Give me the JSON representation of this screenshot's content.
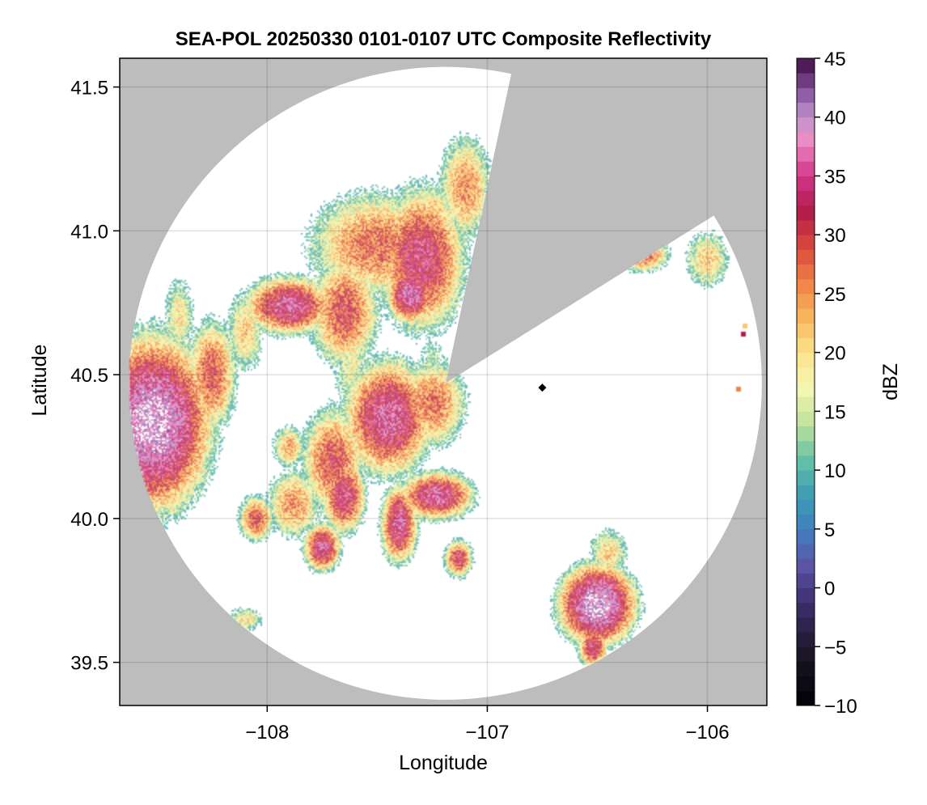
{
  "chart_data": {
    "type": "heatmap",
    "title": "SEA-POL 20250330 0101-0107 UTC Composite Reflectivity",
    "xlabel": "Longitude",
    "ylabel": "Latitude",
    "xlim": [
      -108.67,
      -105.73
    ],
    "ylim": [
      39.35,
      41.6
    ],
    "xticks": [
      -108,
      -107,
      -106
    ],
    "xtick_labels": [
      "−108",
      "−107",
      "−106"
    ],
    "yticks": [
      39.5,
      40.0,
      40.5,
      41.0,
      41.5
    ],
    "ytick_labels": [
      "39.5",
      "40.0",
      "40.5",
      "41.0",
      "41.5"
    ],
    "grid": true,
    "background_color": "#bdbdbd",
    "radar": {
      "center_lon": -107.19,
      "center_lat": 40.47,
      "range_lat_deg": 1.1,
      "blocked_sector_azimuth_deg": [
        12,
        58
      ]
    },
    "radar_marker": {
      "lon": -106.75,
      "lat": 40.455,
      "symbol": "diamond"
    },
    "colorbar": {
      "label": "dBZ",
      "min": -10,
      "max": 45,
      "ticks": [
        -10,
        -5,
        0,
        5,
        10,
        15,
        20,
        25,
        30,
        35,
        40,
        45
      ],
      "tick_labels": [
        "−10",
        "−5",
        "0",
        "5",
        "10",
        "15",
        "20",
        "25",
        "30",
        "35",
        "40",
        "45"
      ],
      "colormap_stops": [
        {
          "v": -10,
          "c": "#000004"
        },
        {
          "v": -5,
          "c": "#1f1a2e"
        },
        {
          "v": -1,
          "c": "#3f3072"
        },
        {
          "v": 2,
          "c": "#5b56a6"
        },
        {
          "v": 5,
          "c": "#3f7fbf"
        },
        {
          "v": 8,
          "c": "#3e9fb3"
        },
        {
          "v": 11,
          "c": "#66c2a5"
        },
        {
          "v": 14,
          "c": "#c1e29b"
        },
        {
          "v": 17,
          "c": "#f4f7b3"
        },
        {
          "v": 20,
          "c": "#fce38a"
        },
        {
          "v": 23,
          "c": "#f8b65e"
        },
        {
          "v": 26,
          "c": "#f08146"
        },
        {
          "v": 29,
          "c": "#d9483b"
        },
        {
          "v": 32,
          "c": "#b01c4a"
        },
        {
          "v": 35,
          "c": "#d3358a"
        },
        {
          "v": 38,
          "c": "#ec8cc4"
        },
        {
          "v": 40,
          "c": "#c095cc"
        },
        {
          "v": 42,
          "c": "#8c5aa4"
        },
        {
          "v": 45,
          "c": "#3f0a45"
        }
      ]
    },
    "echo_cells": [
      {
        "lon": -108.52,
        "lat": 40.33,
        "sx": 0.15,
        "sy": 0.17,
        "peak": 42
      },
      {
        "lon": -108.55,
        "lat": 40.46,
        "sx": 0.1,
        "sy": 0.12,
        "peak": 24
      },
      {
        "lon": -108.25,
        "lat": 40.5,
        "sx": 0.07,
        "sy": 0.12,
        "peak": 30
      },
      {
        "lon": -108.38,
        "lat": 40.4,
        "sx": 0.06,
        "sy": 0.08,
        "peak": 26
      },
      {
        "lon": -108.4,
        "lat": 40.7,
        "sx": 0.05,
        "sy": 0.1,
        "peak": 20
      },
      {
        "lon": -108.1,
        "lat": 40.65,
        "sx": 0.06,
        "sy": 0.1,
        "peak": 22
      },
      {
        "lon": -107.9,
        "lat": 40.74,
        "sx": 0.12,
        "sy": 0.06,
        "peak": 36
      },
      {
        "lon": -107.65,
        "lat": 40.72,
        "sx": 0.1,
        "sy": 0.12,
        "peak": 30
      },
      {
        "lon": -107.5,
        "lat": 40.95,
        "sx": 0.2,
        "sy": 0.12,
        "peak": 28
      },
      {
        "lon": -107.3,
        "lat": 40.9,
        "sx": 0.12,
        "sy": 0.15,
        "peak": 34
      },
      {
        "lon": -107.1,
        "lat": 41.15,
        "sx": 0.08,
        "sy": 0.12,
        "peak": 26
      },
      {
        "lon": -107.35,
        "lat": 40.78,
        "sx": 0.06,
        "sy": 0.06,
        "peak": 38
      },
      {
        "lon": -107.25,
        "lat": 41.05,
        "sx": 0.08,
        "sy": 0.08,
        "peak": 24
      },
      {
        "lon": -107.45,
        "lat": 40.35,
        "sx": 0.12,
        "sy": 0.12,
        "peak": 36
      },
      {
        "lon": -107.25,
        "lat": 40.4,
        "sx": 0.1,
        "sy": 0.1,
        "peak": 28
      },
      {
        "lon": -107.7,
        "lat": 40.2,
        "sx": 0.09,
        "sy": 0.12,
        "peak": 30
      },
      {
        "lon": -107.65,
        "lat": 40.08,
        "sx": 0.06,
        "sy": 0.08,
        "peak": 34
      },
      {
        "lon": -107.88,
        "lat": 40.05,
        "sx": 0.08,
        "sy": 0.08,
        "peak": 26
      },
      {
        "lon": -108.05,
        "lat": 40.0,
        "sx": 0.05,
        "sy": 0.05,
        "peak": 30
      },
      {
        "lon": -107.75,
        "lat": 39.9,
        "sx": 0.05,
        "sy": 0.05,
        "peak": 36
      },
      {
        "lon": -107.4,
        "lat": 39.98,
        "sx": 0.05,
        "sy": 0.08,
        "peak": 36
      },
      {
        "lon": -107.23,
        "lat": 40.08,
        "sx": 0.1,
        "sy": 0.05,
        "peak": 36
      },
      {
        "lon": -107.13,
        "lat": 39.86,
        "sx": 0.04,
        "sy": 0.04,
        "peak": 32
      },
      {
        "lon": -106.5,
        "lat": 39.7,
        "sx": 0.1,
        "sy": 0.08,
        "peak": 42
      },
      {
        "lon": -106.52,
        "lat": 39.55,
        "sx": 0.04,
        "sy": 0.04,
        "peak": 34
      },
      {
        "lon": -106.45,
        "lat": 39.88,
        "sx": 0.06,
        "sy": 0.06,
        "peak": 22
      },
      {
        "lon": -106.3,
        "lat": 40.92,
        "sx": 0.08,
        "sy": 0.04,
        "peak": 30
      },
      {
        "lon": -106.0,
        "lat": 40.9,
        "sx": 0.07,
        "sy": 0.07,
        "peak": 22
      },
      {
        "lon": -108.43,
        "lat": 40.1,
        "sx": 0.05,
        "sy": 0.08,
        "peak": 22
      },
      {
        "lon": -107.9,
        "lat": 40.25,
        "sx": 0.05,
        "sy": 0.05,
        "peak": 24
      },
      {
        "lon": -108.1,
        "lat": 39.65,
        "sx": 0.06,
        "sy": 0.03,
        "peak": 20
      },
      {
        "lon": -107.25,
        "lat": 40.55,
        "sx": 0.05,
        "sy": 0.07,
        "peak": 14
      },
      {
        "lon": -107.62,
        "lat": 40.55,
        "sx": 0.06,
        "sy": 0.15,
        "peak": 18
      }
    ],
    "point_echoes": [
      {
        "lon": -105.84,
        "lat": 40.64,
        "value": 32
      },
      {
        "lon": -105.86,
        "lat": 40.45,
        "value": 26
      },
      {
        "lon": -105.83,
        "lat": 40.67,
        "value": 22
      }
    ]
  }
}
